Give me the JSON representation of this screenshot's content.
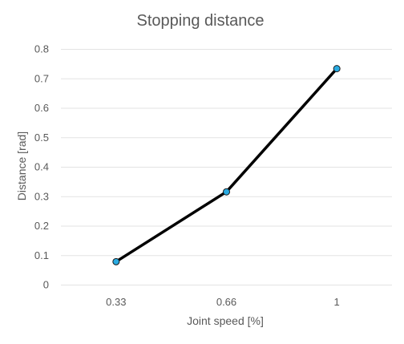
{
  "chart_data": {
    "type": "line",
    "title": "Stopping distance",
    "xlabel": "Joint speed [%]",
    "ylabel": "Distance [rad]",
    "categories": [
      "0.33",
      "0.66",
      "1"
    ],
    "series": [
      {
        "values": [
          0.078,
          0.315,
          0.733
        ]
      }
    ],
    "ylim": [
      0,
      0.8
    ],
    "yticks": [
      "0",
      "0.1",
      "0.2",
      "0.3",
      "0.4",
      "0.5",
      "0.6",
      "0.7",
      "0.8"
    ],
    "grid": true,
    "legend": "none",
    "colors": {
      "line": "#000000",
      "marker_fill": "#29ABE2",
      "marker_stroke": "#1a1a1a",
      "grid": "#E3E3E3",
      "text": "#595959"
    }
  }
}
